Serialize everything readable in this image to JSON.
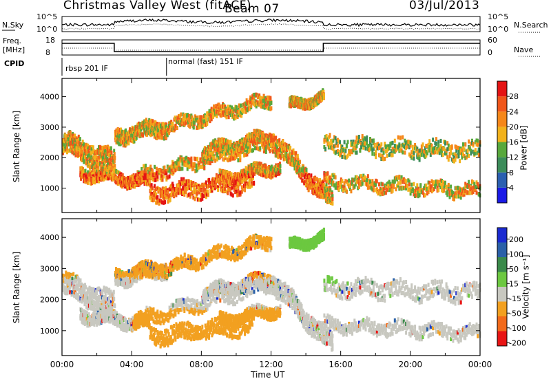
{
  "header": {
    "station": "Christmas Valley West (fitACF)",
    "beam": "Beam 07",
    "date": "03/Jul/2013"
  },
  "left_labels": {
    "nsky": "N.Sky",
    "freq_line1": "Freq.",
    "freq_line2": "[MHz]",
    "cpid": "CPID"
  },
  "right_labels": {
    "nsearch": "N.Search",
    "nave": "Nave"
  },
  "noise_panel": {
    "left_ticks": [
      "10^5",
      "10^0"
    ],
    "right_ticks": [
      "10^5",
      "10^0"
    ]
  },
  "freq_panel": {
    "left_ticks": [
      "18",
      "8"
    ],
    "right_ticks": [
      "60",
      "0"
    ]
  },
  "cpid_panel": {
    "modes": [
      {
        "label": "rbsp 201 IF",
        "start_hour": 0
      },
      {
        "label": "normal (fast) 151 IF",
        "start_hour": 6
      }
    ]
  },
  "chart_data": [
    {
      "type": "heatmap",
      "name": "power",
      "ylabel": "Slant Range [km]",
      "ylim": [
        200,
        4600
      ],
      "yticks": [
        "1000",
        "2000",
        "3000",
        "4000"
      ],
      "xlim_hours": [
        0,
        24
      ],
      "colorbar_label": "Power [dB]",
      "colorbar_ticks": [
        "4",
        "8",
        "12",
        "16",
        "20",
        "24",
        "28"
      ],
      "colors": [
        "#1a1ae6",
        "#2a5fb0",
        "#3c8c5a",
        "#58a83c",
        "#f2b21c",
        "#f5871a",
        "#f0561a",
        "#e41414"
      ]
    },
    {
      "type": "heatmap",
      "name": "velocity",
      "ylabel": "Slant Range [km]",
      "ylim": [
        200,
        4600
      ],
      "yticks": [
        "1000",
        "2000",
        "3000",
        "4000"
      ],
      "xlim_hours": [
        0,
        24
      ],
      "xticks": [
        "00:00",
        "04:00",
        "08:00",
        "12:00",
        "16:00",
        "20:00",
        "00:00"
      ],
      "xlabel": "Time UT",
      "colorbar_label": "Velocity [m s⁻¹]",
      "colorbar_ticks": [
        "200",
        "100",
        "50",
        "15",
        "-15",
        "-50",
        "-100",
        "-200"
      ],
      "colors": [
        "#1a2ad0",
        "#2a60a8",
        "#3a8a4a",
        "#6cc840",
        "#c8c8c0",
        "#f2a020",
        "#f26a1a",
        "#e81414"
      ]
    }
  ]
}
